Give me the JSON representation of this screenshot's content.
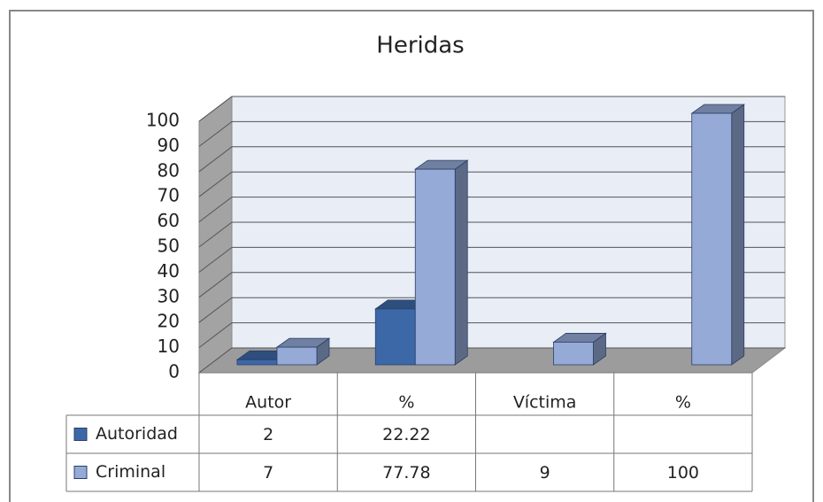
{
  "chart_data": {
    "type": "bar3d",
    "title": "Heridas",
    "categories": [
      "Autor",
      "%",
      "Víctima",
      "%"
    ],
    "series": [
      {
        "name": "Autoridad",
        "color": "#3d68a8",
        "values": [
          2,
          22.22,
          null,
          null
        ]
      },
      {
        "name": "Criminal",
        "color": "#95aad6",
        "values": [
          7,
          77.78,
          9,
          100
        ]
      }
    ],
    "ylim": [
      0,
      100
    ],
    "yticks": [
      0,
      10,
      20,
      30,
      40,
      50,
      60,
      70,
      80,
      90,
      100
    ],
    "grid": true,
    "data_table": true
  }
}
